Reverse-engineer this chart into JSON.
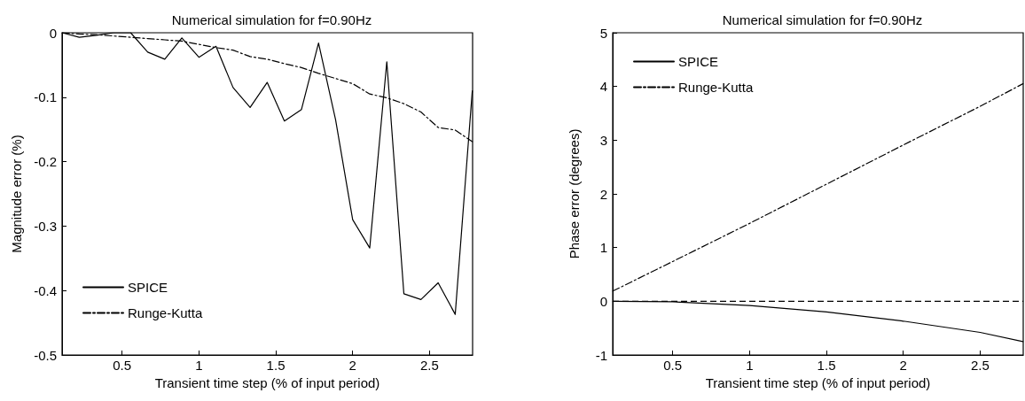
{
  "chart_data": [
    {
      "type": "line",
      "title": "Numerical simulation for f=0.90Hz",
      "xlabel": "Transient time step (% of input period)",
      "ylabel": "Magnitude error (%)",
      "x": [
        0.111,
        0.222,
        0.333,
        0.444,
        0.556,
        0.667,
        0.778,
        0.889,
        1.0,
        1.111,
        1.222,
        1.333,
        1.444,
        1.556,
        1.667,
        1.778,
        1.889,
        2.0,
        2.111,
        2.222,
        2.333,
        2.444,
        2.556,
        2.667,
        2.778
      ],
      "series": [
        {
          "name": "SPICE",
          "color": "#000000",
          "line_style": "solid",
          "values": [
            0,
            -0.007,
            -0.004,
            0,
            0,
            -0.03,
            -0.041,
            -0.008,
            -0.038,
            -0.021,
            -0.085,
            -0.116,
            -0.077,
            -0.137,
            -0.119,
            -0.016,
            -0.135,
            -0.29,
            -0.334,
            -0.045,
            -0.405,
            -0.414,
            -0.388,
            -0.437,
            -0.09
          ]
        },
        {
          "name": "Runge-Kutta",
          "color": "#000000",
          "line_style": "dashdot",
          "values": [
            0,
            -0.002,
            -0.003,
            -0.005,
            -0.007,
            -0.009,
            -0.011,
            -0.013,
            -0.018,
            -0.023,
            -0.027,
            -0.037,
            -0.041,
            -0.048,
            -0.054,
            -0.063,
            -0.071,
            -0.079,
            -0.095,
            -0.101,
            -0.11,
            -0.123,
            -0.147,
            -0.151,
            -0.169
          ]
        }
      ],
      "xlim": [
        0.11,
        2.78
      ],
      "xticks": [
        0.5,
        1,
        1.5,
        2,
        2.5
      ],
      "ylim": [
        -0.5,
        0
      ],
      "yticks": [
        -0.5,
        -0.4,
        -0.3,
        -0.2,
        -0.1,
        0
      ],
      "grid": false,
      "legend": "bottom left",
      "marker": "none"
    },
    {
      "type": "line",
      "title": "Numerical simulation for f=0.90Hz",
      "xlabel": "Transient time step (% of input period)",
      "ylabel": "Phase error (degrees)",
      "series": [
        {
          "name": "SPICE",
          "color": "#000000",
          "line_style": "solid",
          "x": [
            0.111,
            0.5,
            1.0,
            1.5,
            2.0,
            2.5,
            2.778
          ],
          "values": [
            0,
            -0.01,
            -0.08,
            -0.2,
            -0.37,
            -0.58,
            -0.75
          ]
        },
        {
          "name": "Runge-Kutta",
          "color": "#000000",
          "line_style": "dashdot",
          "x": [
            0.111,
            0.5,
            1.0,
            1.5,
            2.0,
            2.5,
            2.778
          ],
          "values": [
            0.19,
            0.74,
            1.45,
            2.18,
            2.91,
            3.63,
            4.05
          ]
        }
      ],
      "xlim": [
        0.11,
        2.78
      ],
      "xticks": [
        0.5,
        1,
        1.5,
        2,
        2.5
      ],
      "ylim": [
        -1,
        5
      ],
      "yticks": [
        -1,
        0,
        1,
        2,
        3,
        4,
        5
      ],
      "grid": false,
      "legend": "top left",
      "marker": "none",
      "ref_lines": [
        {
          "axis": "y",
          "value": 0,
          "color": "#000000",
          "line_style": "dashed"
        }
      ]
    }
  ]
}
